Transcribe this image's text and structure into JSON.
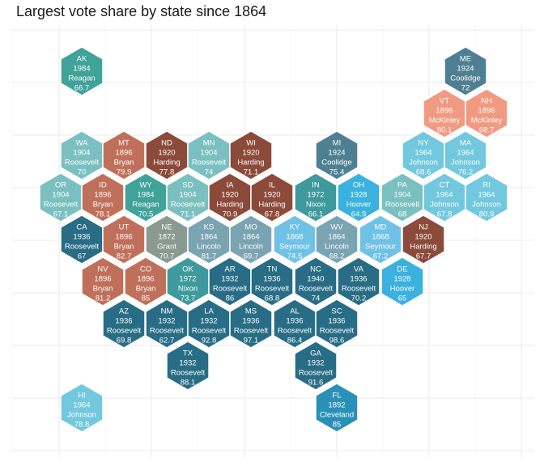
{
  "title": "Largest vote share by state since 1864",
  "chart_data": {
    "type": "hex-tile-map",
    "title": "Largest vote share by state since 1864",
    "fields": [
      "state",
      "year",
      "candidate",
      "vote_share"
    ],
    "states": [
      {
        "abbr": "AK",
        "year": "1984",
        "candidate": "Reagan",
        "share": "66.7",
        "color": "#3fa39a"
      },
      {
        "abbr": "ME",
        "year": "1924",
        "candidate": "Coolidge",
        "share": "72",
        "color": "#4f7f92"
      },
      {
        "abbr": "VT",
        "year": "1896",
        "candidate": "McKinley",
        "share": "80.1",
        "color": "#f09a82"
      },
      {
        "abbr": "NH",
        "year": "1896",
        "candidate": "McKinley",
        "share": "68.7",
        "color": "#f09a82"
      },
      {
        "abbr": "WA",
        "year": "1904",
        "candidate": "Roosevelt",
        "share": "70",
        "color": "#7bc0c1"
      },
      {
        "abbr": "MT",
        "year": "1896",
        "candidate": "Bryan",
        "share": "79.9",
        "color": "#c0705a"
      },
      {
        "abbr": "ND",
        "year": "1920",
        "candidate": "Harding",
        "share": "77.8",
        "color": "#8c4a3a"
      },
      {
        "abbr": "MN",
        "year": "1904",
        "candidate": "Roosevelt",
        "share": "74",
        "color": "#7bc0c1"
      },
      {
        "abbr": "WI",
        "year": "1920",
        "candidate": "Harding",
        "share": "71.1",
        "color": "#8c4a3a"
      },
      {
        "abbr": "MI",
        "year": "1924",
        "candidate": "Coolidge",
        "share": "75.4",
        "color": "#4f7f92"
      },
      {
        "abbr": "NY",
        "year": "1964",
        "candidate": "Johnson",
        "share": "68.6",
        "color": "#72c8de"
      },
      {
        "abbr": "MA",
        "year": "1964",
        "candidate": "Johnson",
        "share": "76.2",
        "color": "#72c8de"
      },
      {
        "abbr": "OR",
        "year": "1904",
        "candidate": "Roosevelt",
        "share": "67.1",
        "color": "#7bc0c1"
      },
      {
        "abbr": "ID",
        "year": "1896",
        "candidate": "Bryan",
        "share": "78.1",
        "color": "#c0705a"
      },
      {
        "abbr": "WY",
        "year": "1984",
        "candidate": "Reagan",
        "share": "70.5",
        "color": "#3fa39a"
      },
      {
        "abbr": "SD",
        "year": "1904",
        "candidate": "Roosevelt",
        "share": "71.1",
        "color": "#7bc0c1"
      },
      {
        "abbr": "IA",
        "year": "1920",
        "candidate": "Harding",
        "share": "70.9",
        "color": "#8c4a3a"
      },
      {
        "abbr": "IL",
        "year": "1920",
        "candidate": "Harding",
        "share": "67.8",
        "color": "#8c4a3a"
      },
      {
        "abbr": "IN",
        "year": "1972",
        "candidate": "Nixon",
        "share": "66.1",
        "color": "#3e9a9c"
      },
      {
        "abbr": "OH",
        "year": "1928",
        "candidate": "Hoover",
        "share": "64.9",
        "color": "#3ab1de"
      },
      {
        "abbr": "PA",
        "year": "1904",
        "candidate": "Roosevelt",
        "share": "68",
        "color": "#7bc0c1"
      },
      {
        "abbr": "CT",
        "year": "1964",
        "candidate": "Johnson",
        "share": "67.8",
        "color": "#72c8de"
      },
      {
        "abbr": "RI",
        "year": "1964",
        "candidate": "Johnson",
        "share": "80.9",
        "color": "#72c8de"
      },
      {
        "abbr": "CA",
        "year": "1936",
        "candidate": "Roosevelt",
        "share": "67",
        "color": "#286d85"
      },
      {
        "abbr": "UT",
        "year": "1896",
        "candidate": "Bryan",
        "share": "82.7",
        "color": "#c0705a"
      },
      {
        "abbr": "NE",
        "year": "1872",
        "candidate": "Grant",
        "share": "70.7",
        "color": "#8a9a91"
      },
      {
        "abbr": "KS",
        "year": "1864",
        "candidate": "Lincoln",
        "share": "81.7",
        "color": "#7ba4b3"
      },
      {
        "abbr": "MO",
        "year": "1864",
        "candidate": "Lincoln",
        "share": "69.7",
        "color": "#7ba4b3"
      },
      {
        "abbr": "KY",
        "year": "1868",
        "candidate": "Seymour",
        "share": "74.5",
        "color": "#6fc2e6"
      },
      {
        "abbr": "WV",
        "year": "1864",
        "candidate": "Lincoln",
        "share": "68.2",
        "color": "#7ba4b3"
      },
      {
        "abbr": "MD",
        "year": "1868",
        "candidate": "Seymour",
        "share": "67.2",
        "color": "#6fc2e6"
      },
      {
        "abbr": "NJ",
        "year": "1920",
        "candidate": "Harding",
        "share": "67.7",
        "color": "#8c4a3a"
      },
      {
        "abbr": "NV",
        "year": "1896",
        "candidate": "Bryan",
        "share": "81.2",
        "color": "#c0705a"
      },
      {
        "abbr": "CO",
        "year": "1896",
        "candidate": "Bryan",
        "share": "85",
        "color": "#c0705a"
      },
      {
        "abbr": "OK",
        "year": "1972",
        "candidate": "Nixon",
        "share": "73.7",
        "color": "#3e9a9c"
      },
      {
        "abbr": "AR",
        "year": "1932",
        "candidate": "Roosevelt",
        "share": "86",
        "color": "#286d85"
      },
      {
        "abbr": "TN",
        "year": "1936",
        "candidate": "Roosevelt",
        "share": "68.8",
        "color": "#286d85"
      },
      {
        "abbr": "NC",
        "year": "1940",
        "candidate": "Roosevelt",
        "share": "74",
        "color": "#286d85"
      },
      {
        "abbr": "VA",
        "year": "1936",
        "candidate": "Roosevelt",
        "share": "70.2",
        "color": "#286d85"
      },
      {
        "abbr": "DE",
        "year": "1928",
        "candidate": "Hoover",
        "share": "65",
        "color": "#3ab1de"
      },
      {
        "abbr": "AZ",
        "year": "1936",
        "candidate": "Roosevelt",
        "share": "69.8",
        "color": "#286d85"
      },
      {
        "abbr": "NM",
        "year": "1932",
        "candidate": "Roosevelt",
        "share": "62.7",
        "color": "#286d85"
      },
      {
        "abbr": "LA",
        "year": "1932",
        "candidate": "Roosevelt",
        "share": "92.8",
        "color": "#286d85"
      },
      {
        "abbr": "MS",
        "year": "1936",
        "candidate": "Roosevelt",
        "share": "97.1",
        "color": "#286d85"
      },
      {
        "abbr": "AL",
        "year": "1936",
        "candidate": "Roosevelt",
        "share": "86.4",
        "color": "#286d85"
      },
      {
        "abbr": "SC",
        "year": "1936",
        "candidate": "Roosevelt",
        "share": "98.6",
        "color": "#286d85"
      },
      {
        "abbr": "TX",
        "year": "1932",
        "candidate": "Roosevelt",
        "share": "88.1",
        "color": "#286d85"
      },
      {
        "abbr": "GA",
        "year": "1932",
        "candidate": "Roosevelt",
        "share": "91.6",
        "color": "#286d85"
      },
      {
        "abbr": "HI",
        "year": "1964",
        "candidate": "Johnson",
        "share": "78.8",
        "color": "#72c8de"
      },
      {
        "abbr": "FL",
        "year": "1892",
        "candidate": "Cleveland",
        "share": "85",
        "color": "#2a90b8"
      }
    ],
    "grid": true,
    "background": "#ffffff"
  }
}
